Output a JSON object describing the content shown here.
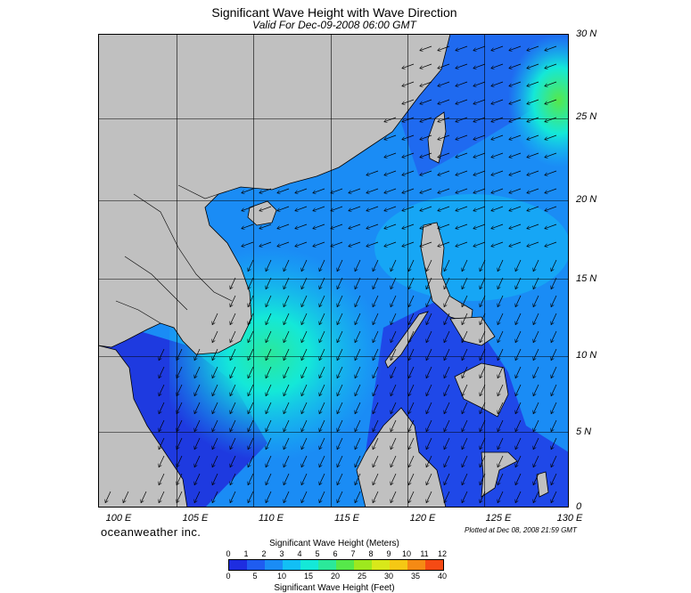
{
  "title": "Significant Wave Height with Wave Direction",
  "subtitle": "Valid For Dec-09-2008 06:00 GMT",
  "map": {
    "region": "South China Sea",
    "lon_range": [
      100,
      130
    ],
    "lat_range": [
      0,
      30
    ],
    "grid": true,
    "land_color": "#c0c0c0",
    "arrow_direction": "toward southwest",
    "lat_labels": [
      "30 N",
      "25 N",
      "20 N",
      "15 N",
      "10 N",
      "5 N",
      "0"
    ],
    "lon_labels": [
      "100 E",
      "105 E",
      "110 E",
      "115 E",
      "120 E",
      "125 E",
      "130 E"
    ]
  },
  "brand": "oceanweather inc.",
  "plotted": "Plotted at Dec 08, 2008 21:59 GMT",
  "colorbar": {
    "title_top": "Significant Wave Height (Meters)",
    "title_bottom": "Significant Wave Height (Feet)",
    "meters_ticks": [
      "0",
      "1",
      "2",
      "3",
      "4",
      "5",
      "6",
      "7",
      "8",
      "9",
      "10",
      "11",
      "12"
    ],
    "feet_ticks": [
      "0",
      "5",
      "10",
      "15",
      "20",
      "25",
      "30",
      "35",
      "40"
    ],
    "colors": [
      "#1e2de0",
      "#1f5cf0",
      "#1a8cf5",
      "#12bff5",
      "#14e8d8",
      "#2be89a",
      "#56e84a",
      "#9ee81e",
      "#d8e81a",
      "#f5c814",
      "#f58a14",
      "#f54a14"
    ]
  }
}
